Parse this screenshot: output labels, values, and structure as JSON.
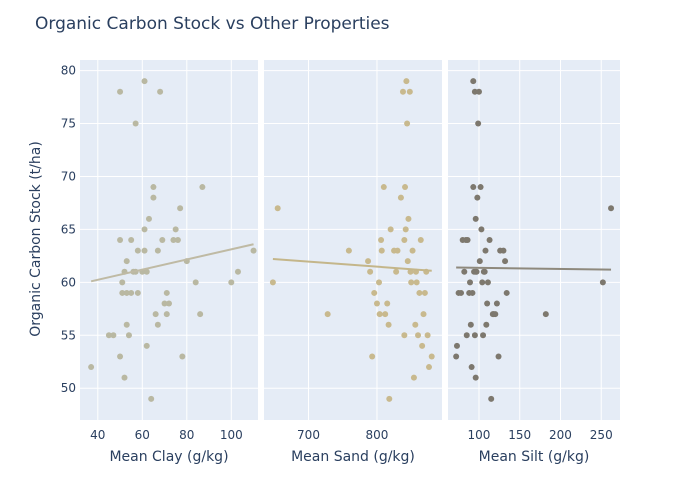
{
  "chart_data": {
    "type": "scatter",
    "title": "Organic Carbon Stock vs Other Properties",
    "ylabel": "Organic Carbon Stock (t/ha)",
    "ylim": [
      47,
      81
    ],
    "yticks": [
      50,
      55,
      60,
      65,
      70,
      75,
      80
    ],
    "grid": true,
    "legend": false,
    "background": "#e5ecf6",
    "grid_color": "#ffffff",
    "text_color": "#2a3f5f",
    "panels": [
      {
        "xlabel": "Mean Clay (g/kg)",
        "xlim": [
          32,
          112
        ],
        "xticks": [
          40,
          60,
          80,
          100
        ],
        "marker_color": "#b9b8a2",
        "trend_color": "#bfbaa4",
        "trend": [
          [
            37,
            60.1
          ],
          [
            110,
            63.6
          ]
        ],
        "points": [
          [
            37,
            52
          ],
          [
            45,
            55
          ],
          [
            47,
            55
          ],
          [
            50,
            64
          ],
          [
            50,
            53
          ],
          [
            51,
            59
          ],
          [
            51,
            60
          ],
          [
            52,
            61
          ],
          [
            52,
            51
          ],
          [
            53,
            59
          ],
          [
            53,
            56
          ],
          [
            53,
            62
          ],
          [
            54,
            55
          ],
          [
            55,
            64
          ],
          [
            55,
            59
          ],
          [
            56,
            61
          ],
          [
            57,
            75
          ],
          [
            57,
            61
          ],
          [
            58,
            59
          ],
          [
            58,
            63
          ],
          [
            60,
            61
          ],
          [
            61,
            63
          ],
          [
            61,
            65
          ],
          [
            62,
            61
          ],
          [
            62,
            54
          ],
          [
            63,
            66
          ],
          [
            64,
            49
          ],
          [
            65,
            68
          ],
          [
            65,
            69
          ],
          [
            66,
            57
          ],
          [
            67,
            63
          ],
          [
            67,
            56
          ],
          [
            68,
            78
          ],
          [
            69,
            64
          ],
          [
            70,
            58
          ],
          [
            71,
            59
          ],
          [
            71,
            57
          ],
          [
            72,
            58
          ],
          [
            74,
            64
          ],
          [
            75,
            65
          ],
          [
            76,
            64
          ],
          [
            77,
            67
          ],
          [
            78,
            53
          ],
          [
            80,
            62
          ],
          [
            84,
            60
          ],
          [
            86,
            57
          ],
          [
            87,
            69
          ],
          [
            100,
            60
          ],
          [
            103,
            61
          ],
          [
            110,
            63
          ],
          [
            50,
            78
          ],
          [
            61,
            79
          ]
        ]
      },
      {
        "xlabel": "Mean Sand (g/kg)",
        "xlim": [
          635,
          895
        ],
        "xticks": [
          700,
          800
        ],
        "marker_color": "#c8b98e",
        "trend_color": "#c4b68a",
        "trend": [
          [
            648,
            62.2
          ],
          [
            880,
            61.1
          ]
        ],
        "points": [
          [
            648,
            60
          ],
          [
            655,
            67
          ],
          [
            728,
            57
          ],
          [
            759,
            63
          ],
          [
            787,
            62
          ],
          [
            790,
            61
          ],
          [
            793,
            53
          ],
          [
            796,
            59
          ],
          [
            800,
            58
          ],
          [
            803,
            60
          ],
          [
            804,
            57
          ],
          [
            806,
            64
          ],
          [
            807,
            63
          ],
          [
            810,
            69
          ],
          [
            812,
            57
          ],
          [
            815,
            58
          ],
          [
            817,
            56
          ],
          [
            818,
            49
          ],
          [
            820,
            65
          ],
          [
            825,
            63
          ],
          [
            828,
            61
          ],
          [
            830,
            63
          ],
          [
            835,
            68
          ],
          [
            838,
            78
          ],
          [
            840,
            55
          ],
          [
            840,
            64
          ],
          [
            841,
            69
          ],
          [
            842,
            65
          ],
          [
            843,
            79
          ],
          [
            844,
            75
          ],
          [
            845,
            62
          ],
          [
            846,
            66
          ],
          [
            848,
            78
          ],
          [
            849,
            61
          ],
          [
            850,
            60
          ],
          [
            852,
            63
          ],
          [
            854,
            51
          ],
          [
            856,
            56
          ],
          [
            857,
            61
          ],
          [
            858,
            60
          ],
          [
            860,
            55
          ],
          [
            862,
            59
          ],
          [
            864,
            64
          ],
          [
            866,
            54
          ],
          [
            868,
            57
          ],
          [
            870,
            59
          ],
          [
            872,
            61
          ],
          [
            874,
            55
          ],
          [
            876,
            52
          ],
          [
            880,
            53
          ]
        ]
      },
      {
        "xlabel": "Mean Silt (g/kg)",
        "xlim": [
          62,
          273
        ],
        "xticks": [
          100,
          150,
          200,
          250
        ],
        "marker_color": "#7d786e",
        "trend_color": "#8e897d",
        "trend": [
          [
            72,
            61.4
          ],
          [
            262,
            61.2
          ]
        ],
        "points": [
          [
            72,
            53
          ],
          [
            73,
            54
          ],
          [
            75,
            59
          ],
          [
            78,
            59
          ],
          [
            80,
            64
          ],
          [
            82,
            61
          ],
          [
            84,
            64
          ],
          [
            85,
            55
          ],
          [
            86,
            64
          ],
          [
            88,
            59
          ],
          [
            89,
            60
          ],
          [
            90,
            56
          ],
          [
            91,
            52
          ],
          [
            92,
            59
          ],
          [
            93,
            69
          ],
          [
            93,
            79
          ],
          [
            94,
            61
          ],
          [
            95,
            55
          ],
          [
            95,
            78
          ],
          [
            96,
            66
          ],
          [
            96,
            61
          ],
          [
            96,
            51
          ],
          [
            97,
            61
          ],
          [
            98,
            68
          ],
          [
            99,
            75
          ],
          [
            100,
            78
          ],
          [
            101,
            62
          ],
          [
            102,
            69
          ],
          [
            103,
            65
          ],
          [
            104,
            60
          ],
          [
            105,
            55
          ],
          [
            106,
            61
          ],
          [
            107,
            61
          ],
          [
            108,
            63
          ],
          [
            109,
            56
          ],
          [
            110,
            58
          ],
          [
            111,
            60
          ],
          [
            113,
            64
          ],
          [
            115,
            49
          ],
          [
            117,
            57
          ],
          [
            118,
            57
          ],
          [
            120,
            57
          ],
          [
            122,
            58
          ],
          [
            124,
            53
          ],
          [
            126,
            63
          ],
          [
            130,
            63
          ],
          [
            132,
            62
          ],
          [
            134,
            59
          ],
          [
            182,
            57
          ],
          [
            252,
            60
          ],
          [
            262,
            67
          ]
        ]
      }
    ]
  }
}
